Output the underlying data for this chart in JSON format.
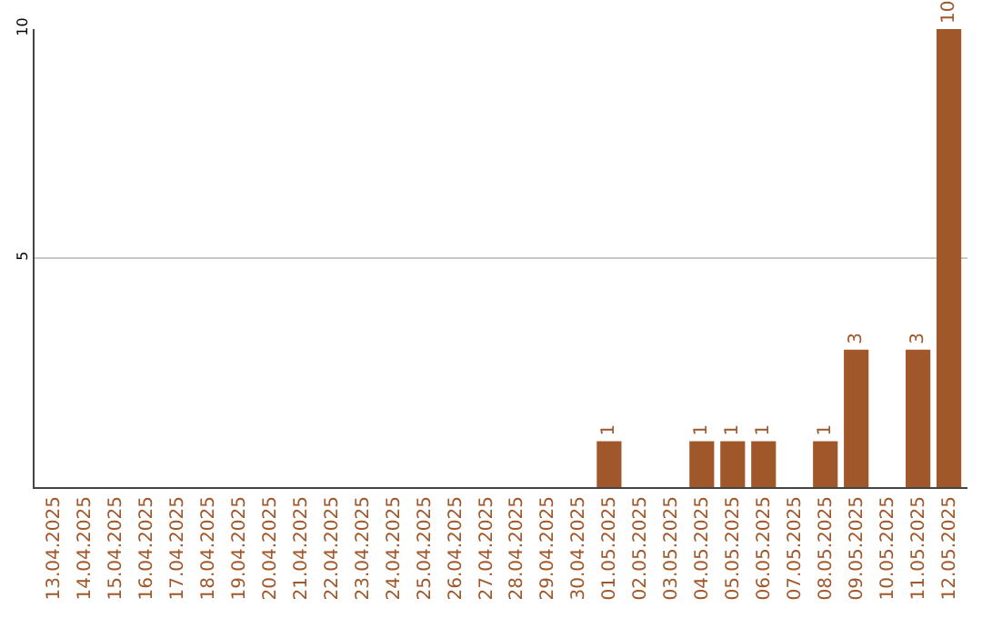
{
  "chart_data": {
    "type": "bar",
    "categories": [
      "13.04.2025",
      "14.04.2025",
      "15.04.2025",
      "16.04.2025",
      "17.04.2025",
      "18.04.2025",
      "19.04.2025",
      "20.04.2025",
      "21.04.2025",
      "22.04.2025",
      "23.04.2025",
      "24.04.2025",
      "25.04.2025",
      "26.04.2025",
      "27.04.2025",
      "28.04.2025",
      "29.04.2025",
      "30.04.2025",
      "01.05.2025",
      "02.05.2025",
      "03.05.2025",
      "04.05.2025",
      "05.05.2025",
      "06.05.2025",
      "07.05.2025",
      "08.05.2025",
      "09.05.2025",
      "10.05.2025",
      "11.05.2025",
      "12.05.2025"
    ],
    "values": [
      0,
      0,
      0,
      0,
      0,
      0,
      0,
      0,
      0,
      0,
      0,
      0,
      0,
      0,
      0,
      0,
      0,
      0,
      1,
      0,
      0,
      1,
      1,
      1,
      0,
      1,
      3,
      0,
      3,
      10
    ],
    "value_labels": [
      null,
      null,
      null,
      null,
      null,
      null,
      null,
      null,
      null,
      null,
      null,
      null,
      null,
      null,
      null,
      null,
      null,
      null,
      "1",
      null,
      null,
      "1",
      "1",
      "1",
      null,
      "1",
      "3",
      null,
      "3",
      "10"
    ],
    "color": "#a0572a",
    "ylim": [
      0,
      10
    ],
    "yticks": [
      5,
      10
    ],
    "grid": "y",
    "legend": false
  }
}
